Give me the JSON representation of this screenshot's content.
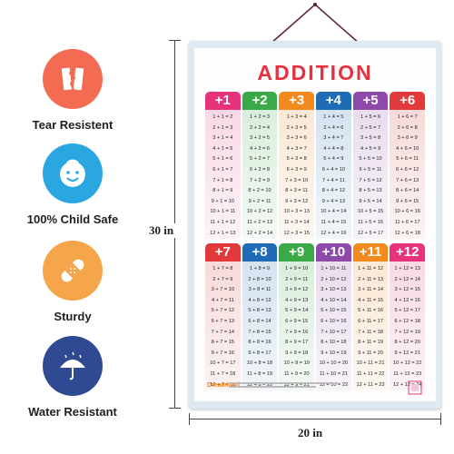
{
  "features": [
    {
      "label": "Tear Resistent",
      "icon": "tear-resistant-icon",
      "color": "#f26b52"
    },
    {
      "label": "100% Child Safe",
      "icon": "baby-face-icon",
      "color": "#2aa7e0"
    },
    {
      "label": "Sturdy",
      "icon": "bandage-icon",
      "color": "#f5a54a"
    },
    {
      "label": "Water Resistant",
      "icon": "umbrella-rain-icon",
      "color": "#2f4a93"
    }
  ],
  "dimensions": {
    "height": "30 in",
    "width": "20 in"
  },
  "chart": {
    "title": "ADDITION",
    "footer_logo": "Dreamland",
    "columns": [
      {
        "label": "+1",
        "color": "#e8327c",
        "rows": [
          "1 + 1 = 2",
          "2 + 1 = 3",
          "3 + 1 = 4",
          "4 + 1 = 5",
          "5 + 1 = 6",
          "6 + 1 = 7",
          "7 + 1 = 8",
          "8 + 1 = 9",
          "9 + 1 = 10",
          "10 + 1 = 11",
          "11 + 1 = 12",
          "12 + 1 = 13"
        ]
      },
      {
        "label": "+2",
        "color": "#3aaa48",
        "rows": [
          "1 + 2 = 3",
          "2 + 2 = 4",
          "3 + 2 = 5",
          "4 + 2 = 6",
          "5 + 2 = 7",
          "6 + 2 = 8",
          "7 + 2 = 9",
          "8 + 2 = 10",
          "9 + 2 = 11",
          "10 + 2 = 12",
          "11 + 2 = 13",
          "12 + 2 = 14"
        ]
      },
      {
        "label": "+3",
        "color": "#f28a1e",
        "rows": [
          "1 + 3 = 4",
          "2 + 3 = 5",
          "3 + 3 = 6",
          "4 + 3 = 7",
          "5 + 3 = 8",
          "6 + 3 = 9",
          "7 + 3 = 10",
          "8 + 3 = 11",
          "9 + 3 = 12",
          "10 + 3 = 13",
          "11 + 3 = 14",
          "12 + 3 = 15"
        ]
      },
      {
        "label": "+4",
        "color": "#1f6bb5",
        "rows": [
          "1 + 4 = 5",
          "2 + 4 = 6",
          "3 + 4 = 7",
          "4 + 4 = 8",
          "5 + 4 = 9",
          "6 + 4 = 10",
          "7 + 4 = 11",
          "8 + 4 = 12",
          "9 + 4 = 13",
          "10 + 4 = 14",
          "11 + 4 = 15",
          "12 + 4 = 16"
        ]
      },
      {
        "label": "+5",
        "color": "#8e4aa8",
        "rows": [
          "1 + 5 = 6",
          "2 + 5 = 7",
          "3 + 5 = 8",
          "4 + 5 = 9",
          "5 + 5 = 10",
          "6 + 5 = 11",
          "7 + 5 = 12",
          "8 + 5 = 13",
          "9 + 5 = 14",
          "10 + 5 = 15",
          "11 + 5 = 16",
          "12 + 5 = 17"
        ]
      },
      {
        "label": "+6",
        "color": "#e23a3a",
        "rows": [
          "1 + 6 = 7",
          "2 + 6 = 8",
          "3 + 6 = 9",
          "4 + 6 = 10",
          "5 + 6 = 11",
          "6 + 6 = 12",
          "7 + 6 = 13",
          "8 + 6 = 14",
          "9 + 6 = 15",
          "10 + 6 = 16",
          "11 + 6 = 17",
          "12 + 6 = 18"
        ]
      },
      {
        "label": "+7",
        "color": "#e23a3a",
        "rows": [
          "1 + 7 = 8",
          "2 + 7 = 9",
          "3 + 7 = 10",
          "4 + 7 = 11",
          "5 + 7 = 12",
          "6 + 7 = 13",
          "7 + 7 = 14",
          "8 + 7 = 15",
          "9 + 7 = 16",
          "10 + 7 = 17",
          "11 + 7 = 18",
          "12 + 7 = 19"
        ]
      },
      {
        "label": "+8",
        "color": "#1f6bb5",
        "rows": [
          "1 + 8 = 9",
          "2 + 8 = 10",
          "3 + 8 = 11",
          "4 + 8 = 12",
          "5 + 8 = 13",
          "6 + 8 = 14",
          "7 + 8 = 15",
          "8 + 8 = 16",
          "9 + 8 = 17",
          "10 + 8 = 18",
          "11 + 8 = 19",
          "12 + 8 = 20"
        ]
      },
      {
        "label": "+9",
        "color": "#3aaa48",
        "rows": [
          "1 + 9 = 10",
          "2 + 9 = 11",
          "3 + 9 = 12",
          "4 + 9 = 13",
          "5 + 9 = 14",
          "6 + 9 = 15",
          "7 + 9 = 16",
          "8 + 9 = 17",
          "9 + 9 = 18",
          "10 + 9 = 19",
          "11 + 9 = 20",
          "12 + 9 = 21"
        ]
      },
      {
        "label": "+10",
        "color": "#8e4aa8",
        "rows": [
          "1 + 10 = 11",
          "2 + 10 = 12",
          "3 + 10 = 13",
          "4 + 10 = 14",
          "5 + 10 = 15",
          "6 + 10 = 16",
          "7 + 10 = 17",
          "8 + 10 = 18",
          "9 + 10 = 19",
          "10 + 10 = 20",
          "11 + 10 = 21",
          "12 + 10 = 22"
        ]
      },
      {
        "label": "+11",
        "color": "#f28a1e",
        "rows": [
          "1 + 11 = 12",
          "2 + 11 = 13",
          "3 + 11 = 14",
          "4 + 11 = 15",
          "5 + 11 = 16",
          "6 + 11 = 17",
          "7 + 11 = 18",
          "8 + 11 = 19",
          "9 + 11 = 20",
          "10 + 11 = 21",
          "11 + 11 = 22",
          "12 + 11 = 23"
        ]
      },
      {
        "label": "+12",
        "color": "#e8327c",
        "rows": [
          "1 + 12 = 13",
          "2 + 12 = 14",
          "3 + 12 = 15",
          "4 + 12 = 16",
          "5 + 12 = 17",
          "6 + 12 = 18",
          "7 + 12 = 19",
          "8 + 12 = 20",
          "9 + 12 = 21",
          "10 + 12 = 22",
          "11 + 12 = 23",
          "12 + 12 = 24"
        ]
      }
    ]
  }
}
